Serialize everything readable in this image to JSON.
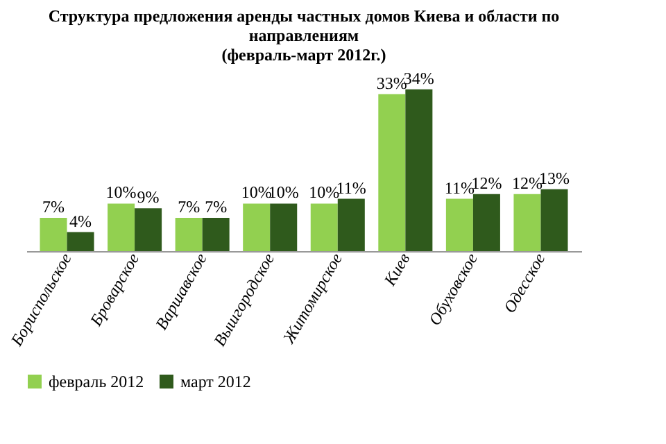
{
  "chart_data": {
    "type": "bar",
    "title": "Структура предложения аренды частных домов Киева и области по\nнаправлениям\n(февраль-март 2012г.)",
    "categories": [
      "Бориспольское",
      "Броварское",
      "Варшавское",
      "Вышгородское",
      "Житомирское",
      "Киев",
      "Обуховское",
      "Одесское"
    ],
    "series": [
      {
        "name": "февраль 2012",
        "color": "#92d050",
        "values": [
          7,
          10,
          7,
          10,
          10,
          33,
          11,
          12
        ],
        "value_labels": [
          "7%",
          "10%",
          "7%",
          "10%",
          "10%",
          "33%",
          "11%",
          "12%"
        ]
      },
      {
        "name": "март 2012",
        "color": "#2f5a1c",
        "values": [
          4,
          9,
          7,
          10,
          11,
          34,
          12,
          13
        ],
        "value_labels": [
          "4%",
          "9%",
          "7%",
          "10%",
          "11%",
          "34%",
          "12%",
          "13%"
        ]
      }
    ],
    "legend": "bottom",
    "grid": false
  }
}
